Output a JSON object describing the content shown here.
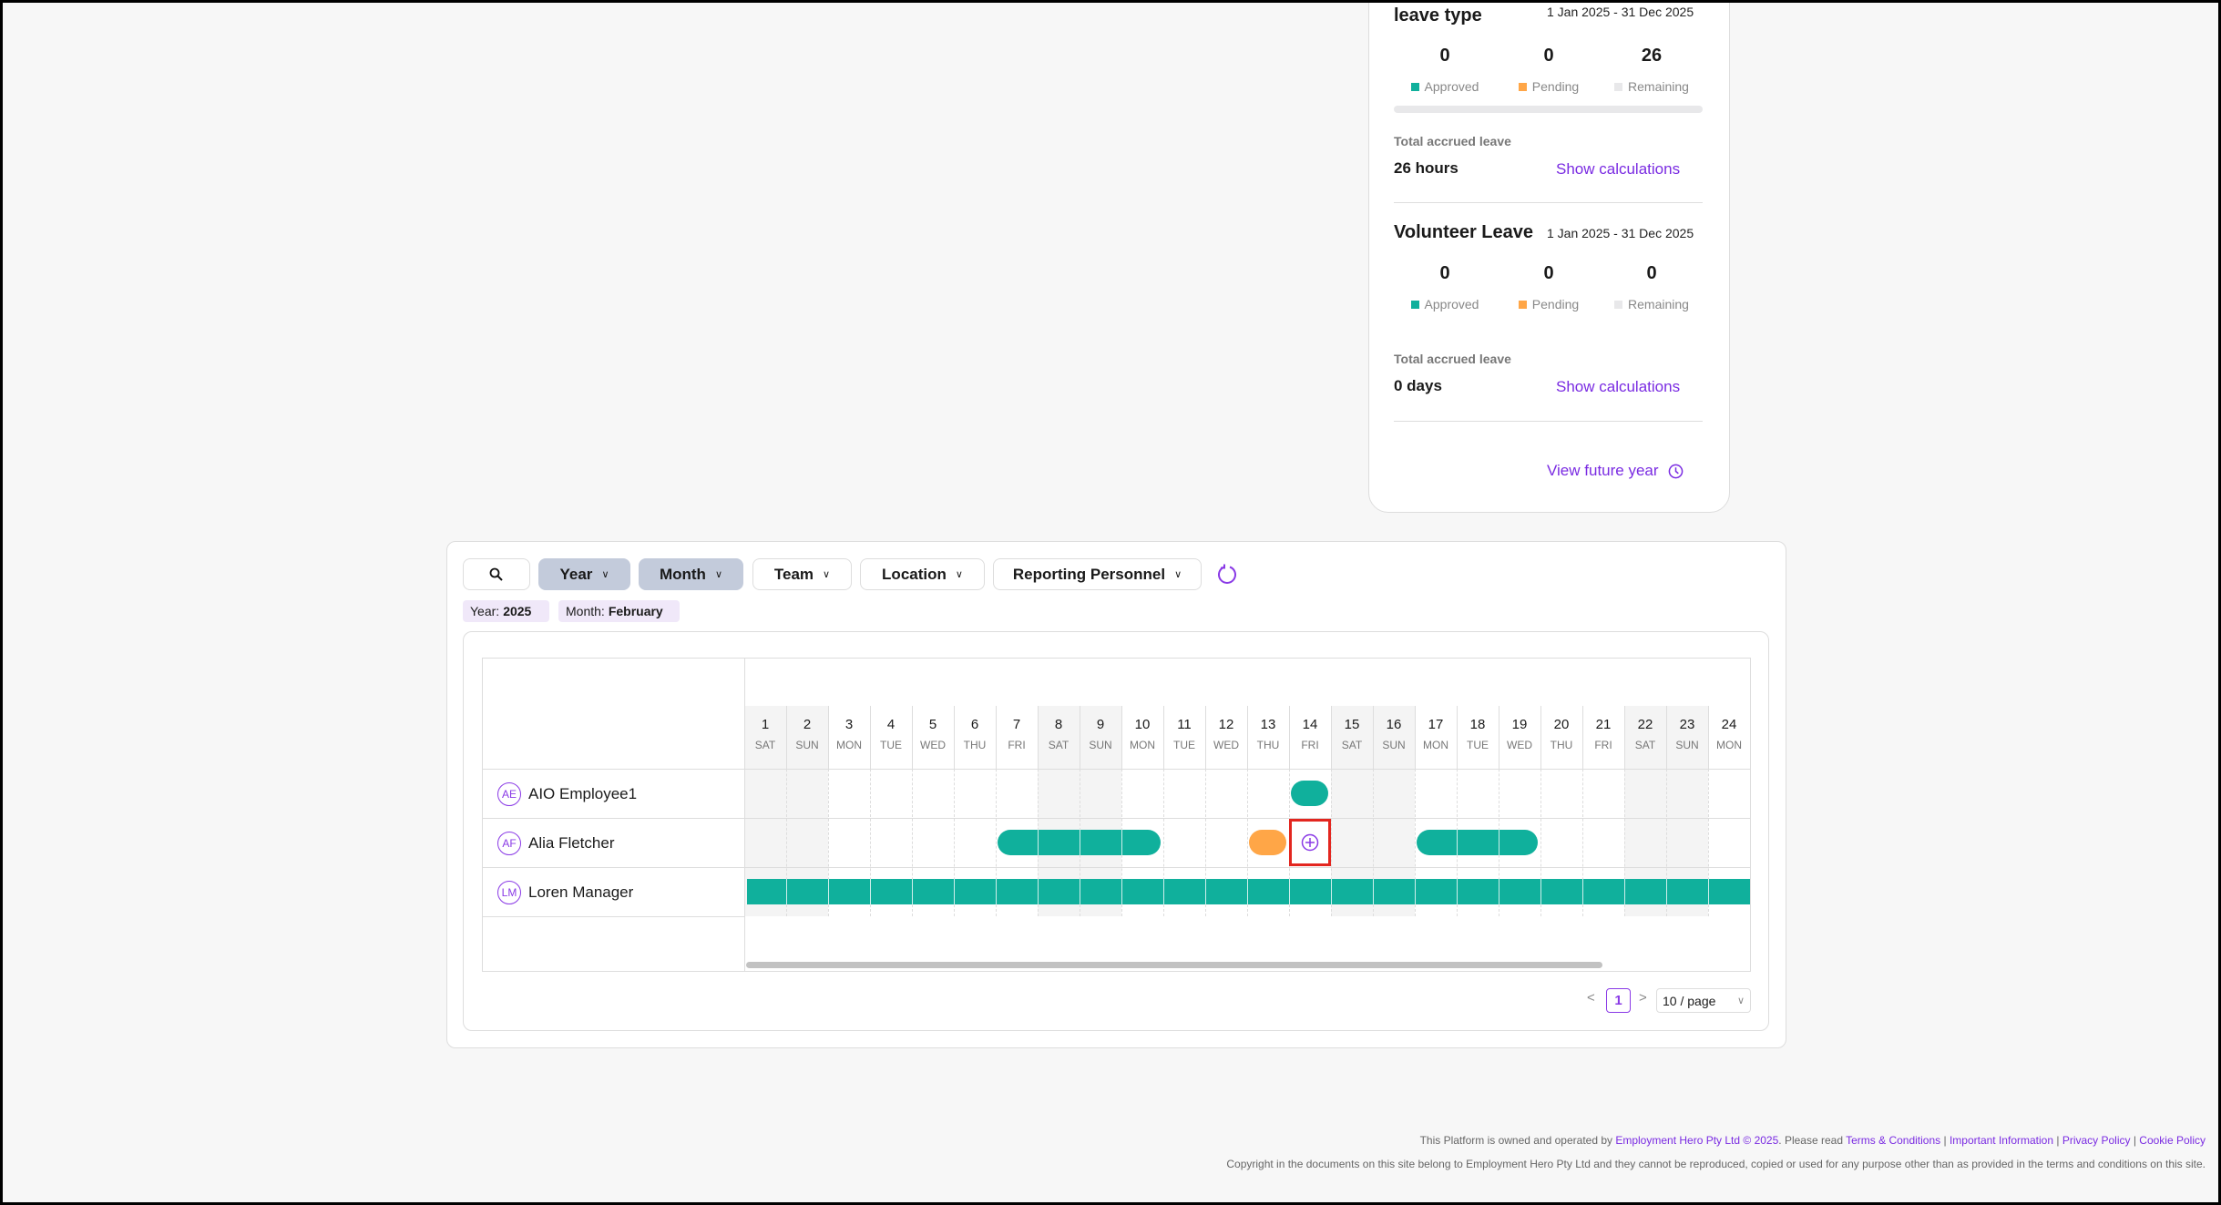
{
  "leave_card": {
    "first": {
      "title": "leave type",
      "period": "1 Jan 2025 - 31 Dec 2025",
      "approved": "0",
      "pending": "0",
      "remaining": "26",
      "total_label": "Total accrued leave",
      "total_value": "26 hours",
      "show_calc": "Show calculations",
      "remaining_fraction": 1.0
    },
    "second": {
      "title": "Volunteer Leave",
      "period": "1 Jan 2025 - 31 Dec 2025",
      "approved": "0",
      "pending": "0",
      "remaining": "0",
      "total_label": "Total accrued leave",
      "total_value": "0 days",
      "show_calc": "Show calculations"
    },
    "legend": {
      "approved": "Approved",
      "pending": "Pending",
      "remaining": "Remaining"
    },
    "view_future": "View future year",
    "colors": {
      "approved": "#10b09c",
      "pending": "#ffa647",
      "remaining": "#e8e8ea",
      "link": "#7a2be2"
    }
  },
  "filters": {
    "search_icon": "search-icon",
    "year": "Year",
    "month": "Month",
    "team": "Team",
    "location": "Location",
    "reporting": "Reporting Personnel",
    "refresh_icon": "refresh-icon"
  },
  "chips": {
    "year_label": "Year:",
    "year_value": "2025",
    "month_label": "Month:",
    "month_value": "February"
  },
  "calendar": {
    "days": [
      {
        "d": "1",
        "w": "SAT"
      },
      {
        "d": "2",
        "w": "SUN"
      },
      {
        "d": "3",
        "w": "MON"
      },
      {
        "d": "4",
        "w": "TUE"
      },
      {
        "d": "5",
        "w": "WED"
      },
      {
        "d": "6",
        "w": "THU"
      },
      {
        "d": "7",
        "w": "FRI"
      },
      {
        "d": "8",
        "w": "SAT"
      },
      {
        "d": "9",
        "w": "SUN"
      },
      {
        "d": "10",
        "w": "MON"
      },
      {
        "d": "11",
        "w": "TUE"
      },
      {
        "d": "12",
        "w": "WED"
      },
      {
        "d": "13",
        "w": "THU"
      },
      {
        "d": "14",
        "w": "FRI"
      },
      {
        "d": "15",
        "w": "SAT"
      },
      {
        "d": "16",
        "w": "SUN"
      },
      {
        "d": "17",
        "w": "MON"
      },
      {
        "d": "18",
        "w": "TUE"
      },
      {
        "d": "19",
        "w": "WED"
      },
      {
        "d": "20",
        "w": "THU"
      },
      {
        "d": "21",
        "w": "FRI"
      },
      {
        "d": "22",
        "w": "SAT"
      },
      {
        "d": "23",
        "w": "SUN"
      },
      {
        "d": "24",
        "w": "MON"
      }
    ],
    "employees": [
      {
        "initials": "AE",
        "name": "AIO Employee1",
        "leaves": [
          {
            "from": 14,
            "to": 14,
            "status": "approved"
          }
        ]
      },
      {
        "initials": "AF",
        "name": "Alia Fletcher",
        "leaves": [
          {
            "from": 7,
            "to": 10,
            "status": "approved"
          },
          {
            "from": 13,
            "to": 13,
            "status": "pending"
          },
          {
            "from": 17,
            "to": 19,
            "status": "approved"
          }
        ],
        "add_day": 14
      },
      {
        "initials": "LM",
        "name": "Loren Manager",
        "leaves": [
          {
            "from": 1,
            "to": 24,
            "status": "approved",
            "continuing": true
          }
        ]
      }
    ]
  },
  "pagination": {
    "prev": "<",
    "page": "1",
    "next": ">",
    "page_size": "10 / page"
  },
  "footer": {
    "line1_prefix": "This Platform is owned and operated by ",
    "company": "Employment Hero Pty Ltd © 2025",
    "line1_mid": ". Please read ",
    "terms": "Terms & Conditions",
    "important": "Important Information",
    "privacy": "Privacy Policy",
    "cookie": "Cookie Policy",
    "line2": "Copyright in the documents on this site belong to Employment Hero Pty Ltd and they cannot be reproduced, copied or used for any purpose other than as provided in the terms and conditions on this site."
  }
}
